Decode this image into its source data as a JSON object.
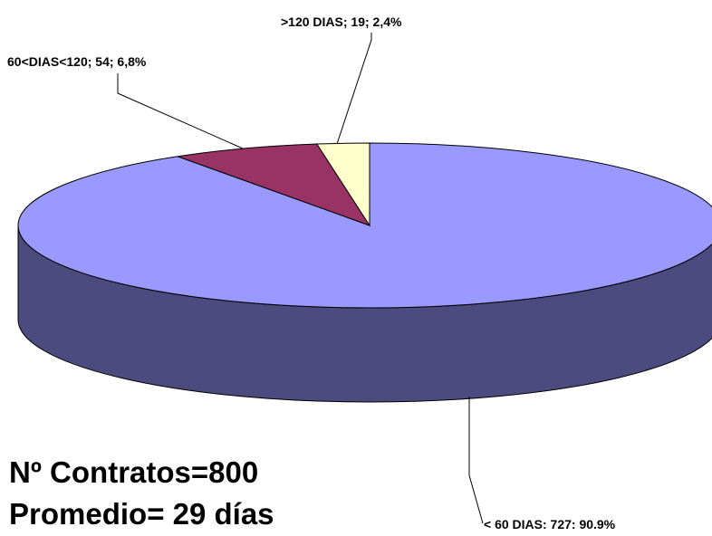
{
  "chart_data": {
    "type": "pie",
    "style": "3d-exploded-none",
    "slices": [
      {
        "label": "< 60 DIAS",
        "count": 727,
        "percent_text": "90.9%",
        "value": 90.9,
        "display_label": "< 60 DIAS: 727: 90.9%",
        "top_color": "#9999ff",
        "side_color": "#4b4b80"
      },
      {
        "label": "60<DIAS<120",
        "count": 54,
        "percent_text": "6,8%",
        "value": 6.8,
        "display_label": "60<DIAS<120; 54; 6,8%",
        "top_color": "#993366",
        "side_color": "#4d1a33"
      },
      {
        "label": ">120 DIAS",
        "count": 19,
        "percent_text": "2,4%",
        "value": 2.4,
        "display_label": ">120 DIAS; 19; 2,4%",
        "top_color": "#ffffcc",
        "side_color": "#80806a"
      }
    ],
    "legend": "none"
  },
  "summary": {
    "contracts_text": "Nº Contratos=800",
    "average_text": "Promedio= 29 días"
  },
  "colors": {
    "outline": "#000000",
    "background": "#ffffff"
  }
}
